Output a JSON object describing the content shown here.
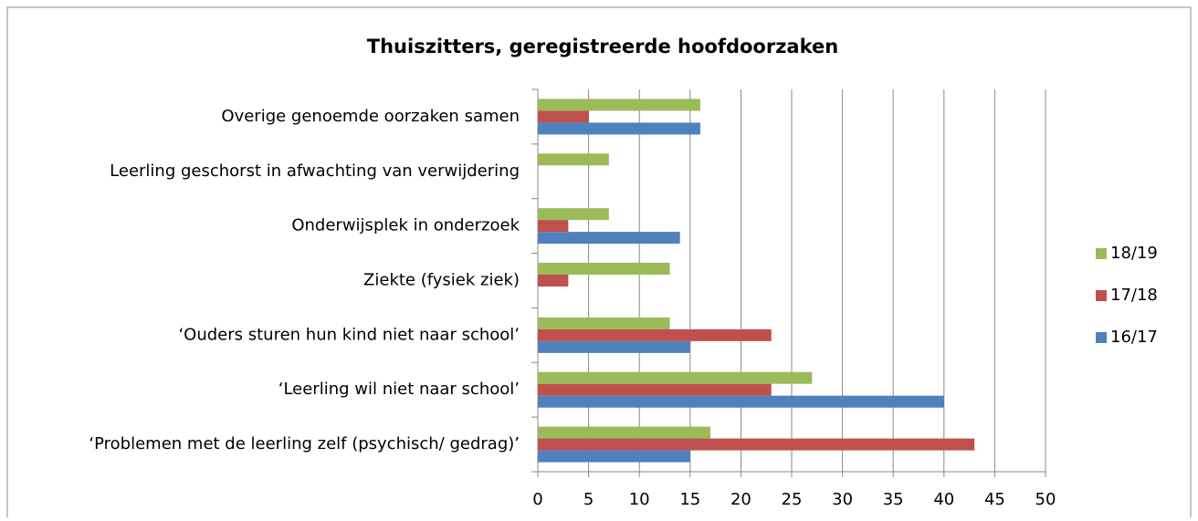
{
  "chart_data": {
    "type": "bar",
    "orientation": "horizontal",
    "title": "Thuiszitters, geregistreerde hoofdoorzaken",
    "categories": [
      "Overige genoemde oorzaken samen",
      "Leerling geschorst in afwachting van verwijdering",
      "Onderwijsplek in onderzoek",
      "Ziekte (fysiek ziek)",
      "‘Ouders sturen hun kind niet naar school’",
      "‘Leerling wil niet naar school’",
      "‘Problemen met de leerling zelf (psychisch/ gedrag)’"
    ],
    "series": [
      {
        "name": "18/19",
        "color": "#9bbb59",
        "values": [
          16,
          7,
          7,
          13,
          13,
          27,
          17
        ]
      },
      {
        "name": "17/18",
        "color": "#c0504d",
        "values": [
          5,
          0,
          3,
          3,
          23,
          23,
          43
        ]
      },
      {
        "name": "16/17",
        "color": "#4f81bd",
        "values": [
          16,
          0,
          14,
          0,
          15,
          40,
          15
        ]
      }
    ],
    "xlim": [
      0,
      50
    ],
    "xticks": [
      0,
      5,
      10,
      15,
      20,
      25,
      30,
      35,
      40,
      45,
      50
    ],
    "grid": true,
    "legend": "right"
  }
}
